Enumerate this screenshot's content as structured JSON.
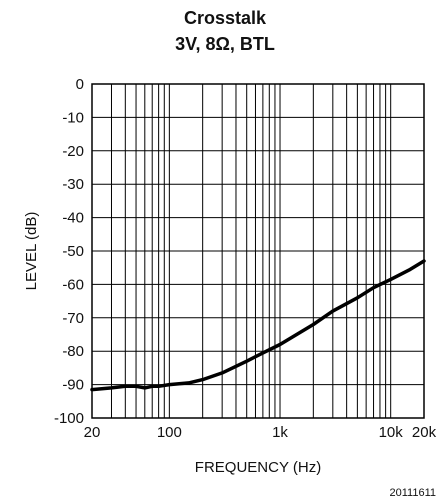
{
  "chart_data": {
    "type": "line",
    "title": "Crosstalk",
    "subtitle": "3V, 8Ω, BTL",
    "xlabel": "FREQUENCY (Hz)",
    "ylabel": "LEVEL (dB)",
    "x_scale": "log",
    "xlim": [
      20,
      20000
    ],
    "ylim": [
      -100,
      0
    ],
    "grid": true,
    "x_tick_labels": [
      {
        "value": 20,
        "label": "20"
      },
      {
        "value": 100,
        "label": "100"
      },
      {
        "value": 1000,
        "label": "1k"
      },
      {
        "value": 10000,
        "label": "10k"
      },
      {
        "value": 20000,
        "label": "20k"
      }
    ],
    "y_tick_labels": [
      {
        "value": 0,
        "label": "0"
      },
      {
        "value": -10,
        "label": "-10"
      },
      {
        "value": -20,
        "label": "-20"
      },
      {
        "value": -30,
        "label": "-30"
      },
      {
        "value": -40,
        "label": "-40"
      },
      {
        "value": -50,
        "label": "-50"
      },
      {
        "value": -60,
        "label": "-60"
      },
      {
        "value": -70,
        "label": "-70"
      },
      {
        "value": -80,
        "label": "-80"
      },
      {
        "value": -90,
        "label": "-90"
      },
      {
        "value": -100,
        "label": "-100"
      }
    ],
    "series": [
      {
        "color": "#000000",
        "x": [
          20,
          30,
          40,
          50,
          60,
          70,
          80,
          100,
          150,
          200,
          300,
          500,
          700,
          1000,
          2000,
          3000,
          5000,
          7000,
          10000,
          15000,
          20000
        ],
        "y": [
          -91.5,
          -91,
          -90.5,
          -90.5,
          -91,
          -90.5,
          -90.5,
          -90,
          -89.5,
          -88.5,
          -86.5,
          -83,
          -80.5,
          -78,
          -72,
          -68,
          -64,
          -61,
          -58.5,
          -55.5,
          -53
        ]
      }
    ]
  },
  "figure_id": "20111611"
}
